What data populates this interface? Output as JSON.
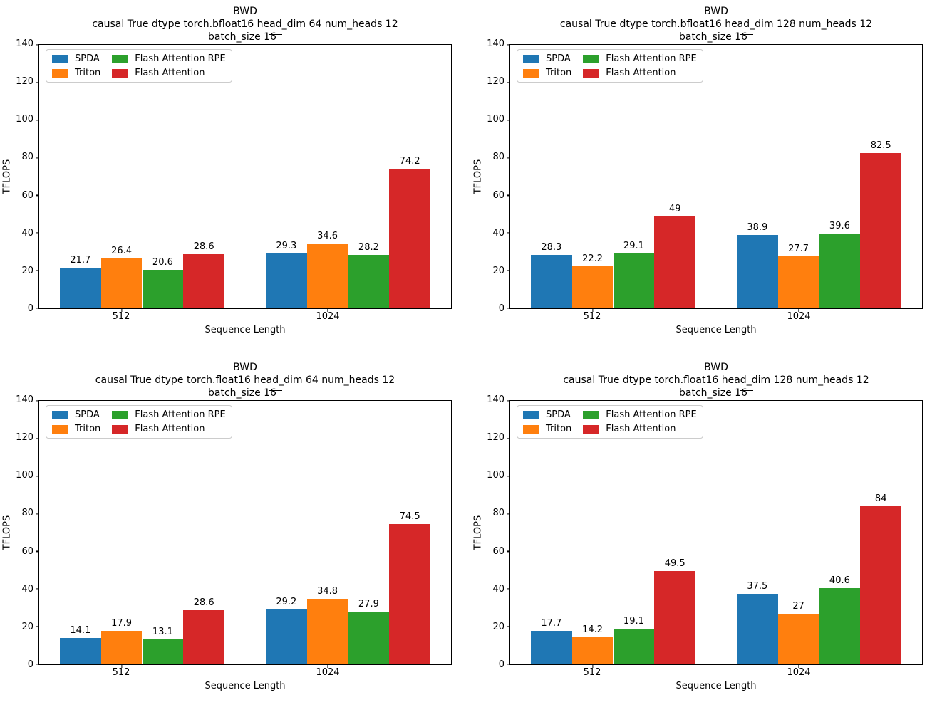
{
  "chart_data": [
    {
      "type": "bar",
      "title": "BWD",
      "subtitle": "causal True dtype torch.bfloat16 head_dim 64 num_heads 12",
      "subtitle2": "batch_size 16",
      "xlabel": "Sequence Length",
      "ylabel": "TFLOPS",
      "categories": [
        "512",
        "1024"
      ],
      "ylim": [
        0,
        140
      ],
      "yticks": [
        0,
        20,
        40,
        60,
        80,
        100,
        120,
        140
      ],
      "grid": false,
      "legend_position": "upper left",
      "legend_columns": 2,
      "series": [
        {
          "name": "SPDA",
          "color": "#1f77b4",
          "values": [
            21.7,
            29.3
          ]
        },
        {
          "name": "Triton",
          "color": "#ff7f0e",
          "values": [
            26.4,
            34.6
          ]
        },
        {
          "name": "Flash Attention RPE",
          "color": "#2ca02c",
          "values": [
            20.6,
            28.2
          ]
        },
        {
          "name": "Flash Attention",
          "color": "#d62728",
          "values": [
            28.6,
            74.2
          ]
        }
      ]
    },
    {
      "type": "bar",
      "title": "BWD",
      "subtitle": "causal True dtype torch.bfloat16 head_dim 128 num_heads 12",
      "subtitle2": "batch_size 16",
      "xlabel": "Sequence Length",
      "ylabel": "TFLOPS",
      "categories": [
        "512",
        "1024"
      ],
      "ylim": [
        0,
        140
      ],
      "yticks": [
        0,
        20,
        40,
        60,
        80,
        100,
        120,
        140
      ],
      "grid": false,
      "legend_position": "upper left",
      "legend_columns": 2,
      "series": [
        {
          "name": "SPDA",
          "color": "#1f77b4",
          "values": [
            28.3,
            38.9
          ]
        },
        {
          "name": "Triton",
          "color": "#ff7f0e",
          "values": [
            22.2,
            27.7
          ]
        },
        {
          "name": "Flash Attention RPE",
          "color": "#2ca02c",
          "values": [
            29.1,
            39.6
          ]
        },
        {
          "name": "Flash Attention",
          "color": "#d62728",
          "values": [
            49,
            82.5
          ]
        }
      ]
    },
    {
      "type": "bar",
      "title": "BWD",
      "subtitle": "causal True dtype torch.float16 head_dim 64 num_heads 12",
      "subtitle2": "batch_size 16",
      "xlabel": "Sequence Length",
      "ylabel": "TFLOPS",
      "categories": [
        "512",
        "1024"
      ],
      "ylim": [
        0,
        140
      ],
      "yticks": [
        0,
        20,
        40,
        60,
        80,
        100,
        120,
        140
      ],
      "grid": false,
      "legend_position": "upper left",
      "legend_columns": 2,
      "series": [
        {
          "name": "SPDA",
          "color": "#1f77b4",
          "values": [
            14.1,
            29.2
          ]
        },
        {
          "name": "Triton",
          "color": "#ff7f0e",
          "values": [
            17.9,
            34.8
          ]
        },
        {
          "name": "Flash Attention RPE",
          "color": "#2ca02c",
          "values": [
            13.1,
            27.9
          ]
        },
        {
          "name": "Flash Attention",
          "color": "#d62728",
          "values": [
            28.6,
            74.5
          ]
        }
      ]
    },
    {
      "type": "bar",
      "title": "BWD",
      "subtitle": "causal True dtype torch.float16 head_dim 128 num_heads 12",
      "subtitle2": "batch_size 16",
      "xlabel": "Sequence Length",
      "ylabel": "TFLOPS",
      "categories": [
        "512",
        "1024"
      ],
      "ylim": [
        0,
        140
      ],
      "yticks": [
        0,
        20,
        40,
        60,
        80,
        100,
        120,
        140
      ],
      "grid": false,
      "legend_position": "upper left",
      "legend_columns": 2,
      "series": [
        {
          "name": "SPDA",
          "color": "#1f77b4",
          "values": [
            17.7,
            37.5
          ]
        },
        {
          "name": "Triton",
          "color": "#ff7f0e",
          "values": [
            14.2,
            27
          ]
        },
        {
          "name": "Flash Attention RPE",
          "color": "#2ca02c",
          "values": [
            19.1,
            40.6
          ]
        },
        {
          "name": "Flash Attention",
          "color": "#d62728",
          "values": [
            49.5,
            84
          ]
        }
      ]
    }
  ]
}
